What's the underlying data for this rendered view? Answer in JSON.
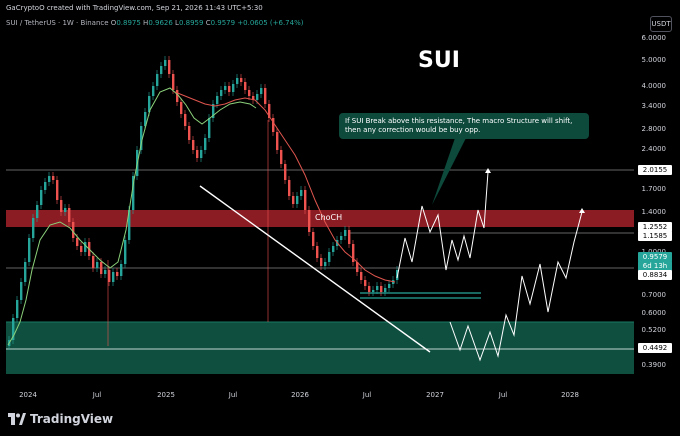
{
  "header": {
    "credit": "GaCryptoO created with TradingView.com, Sep 21, 2026 11:43 UTC+5:30",
    "symbol": "SUI / TetherUS · 1W · Binance",
    "o_label": "O",
    "o_value": "0.8975",
    "h_label": "H",
    "h_value": "0.9626",
    "l_label": "L",
    "l_value": "0.8959",
    "c_label": "C",
    "c_value": "0.9579",
    "change": "+0.0605 (+6.74%)",
    "quote_currency": "USDT"
  },
  "annotations": {
    "title": "SUI",
    "choch": "ChoCH",
    "note": "If SUI Break above this resistance, The macro Structure will shift, then any correction would be buy opp."
  },
  "price_axis": {
    "ticks": [
      "6.0000",
      "5.0000",
      "4.0000",
      "3.4000",
      "2.8000",
      "2.4000",
      "1.7000",
      "1.4000",
      "1.0000",
      "0.7000",
      "0.6000",
      "0.5200",
      "0.3900"
    ]
  },
  "price_labels": [
    {
      "text": "2.0155",
      "bg": "#ffffff",
      "fg": "#000000"
    },
    {
      "text": "1.2552",
      "bg": "#ffffff",
      "fg": "#000000"
    },
    {
      "text": "1.1585",
      "bg": "#ffffff",
      "fg": "#000000"
    },
    {
      "text": "0.9579",
      "bg": "#26a69a",
      "fg": "#ffffff"
    },
    {
      "text": "6d 13h",
      "bg": "#26a69a",
      "fg": "#ffffff"
    },
    {
      "text": "0.8834",
      "bg": "#ffffff",
      "fg": "#000000"
    },
    {
      "text": "0.4492",
      "bg": "#ffffff",
      "fg": "#000000"
    }
  ],
  "time_axis": {
    "ticks": [
      "2024",
      "Jul",
      "2025",
      "Jul",
      "2026",
      "Jul",
      "2027",
      "Jul",
      "2028"
    ]
  },
  "brand": {
    "name": "TradingView"
  },
  "colors": {
    "up": "#26a69a",
    "down": "#ef5350",
    "resistance_zone": "#8b1c24",
    "support_zone": "#0e4f40",
    "ema": "#e0564f",
    "sma": "#8bd17a",
    "background": "#000000"
  },
  "icons": {
    "brand_logo": "tradingview-logo-icon"
  }
}
